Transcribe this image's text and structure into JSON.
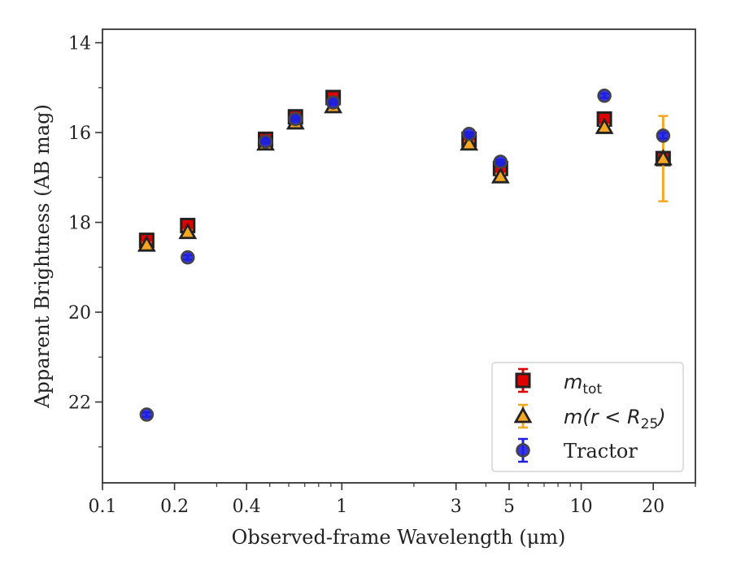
{
  "chart_data": {
    "type": "scatter",
    "xlabel": "Observed-frame Wavelength (μm)",
    "ylabel": "Apparent Brightness (AB mag)",
    "x_scale": "log",
    "xlim": [
      0.1,
      30
    ],
    "ylim": [
      23.8,
      13.7
    ],
    "y_inverted": true,
    "x_ticks": [
      0.1,
      0.2,
      0.4,
      1,
      3,
      5,
      10,
      20
    ],
    "x_tick_labels": [
      "0.1",
      "0.2",
      "0.4",
      "1",
      "3",
      "5",
      "10",
      "20"
    ],
    "y_ticks": [
      14,
      16,
      18,
      20,
      22
    ],
    "y_tick_labels": [
      "14",
      "16",
      "18",
      "20",
      "22"
    ],
    "grid": false,
    "legend_position": "lower-right",
    "colors": {
      "m_tot": "#e00000",
      "m_r25": "#f5a623",
      "tractor": "#1f1fe0",
      "edge": "#222222"
    },
    "series": [
      {
        "name": "m_tot",
        "marker": "square",
        "x": [
          0.153,
          0.227,
          0.48,
          0.64,
          0.92,
          3.4,
          4.6,
          12.5,
          22
        ],
        "y": [
          18.4,
          18.07,
          16.15,
          15.65,
          15.22,
          16.15,
          16.8,
          15.7,
          16.58
        ],
        "yerr": [
          0.05,
          0.05,
          0.04,
          0.04,
          0.04,
          0.05,
          0.06,
          0.05,
          0.08
        ]
      },
      {
        "name": "m(r < R25)",
        "marker": "triangle",
        "x": [
          0.153,
          0.227,
          0.48,
          0.64,
          0.92,
          3.4,
          4.6,
          12.5,
          22
        ],
        "y": [
          18.5,
          18.22,
          16.25,
          15.78,
          15.42,
          16.25,
          16.98,
          15.88,
          16.58
        ],
        "yerr": [
          0.05,
          0.05,
          0.04,
          0.04,
          0.04,
          0.05,
          0.06,
          0.05,
          0.95
        ]
      },
      {
        "name": "Tractor",
        "marker": "circle",
        "x": [
          0.153,
          0.227,
          0.48,
          0.64,
          0.92,
          3.4,
          4.6,
          12.5,
          22
        ],
        "y": [
          22.28,
          18.78,
          16.2,
          15.7,
          15.33,
          16.03,
          16.65,
          15.18,
          16.07
        ],
        "yerr": [
          0.05,
          0.05,
          0.04,
          0.04,
          0.04,
          0.04,
          0.05,
          0.05,
          0.06
        ]
      }
    ],
    "legend": {
      "m_tot": {
        "base": "m",
        "sub": "tot"
      },
      "m_r25": {
        "base": "m(r < R",
        "sub": "25",
        "tail": ")"
      },
      "tractor": "Tractor"
    }
  }
}
